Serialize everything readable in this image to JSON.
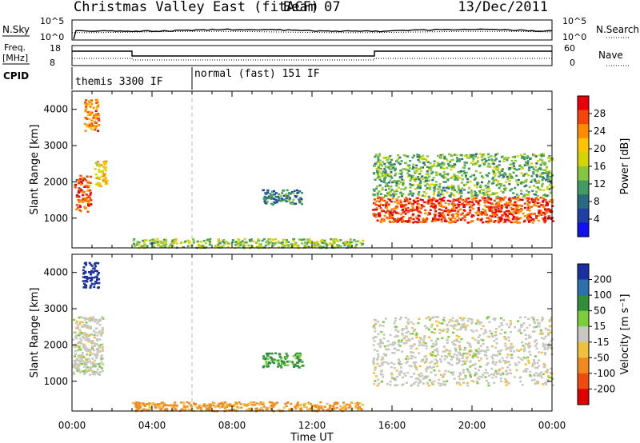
{
  "header": {
    "station": "Christmas Valley East (fitACF)",
    "beam": "Beam 07",
    "date": "13/Dec/2011"
  },
  "panels": {
    "nsky": {
      "label": "N.Sky",
      "ticks": [
        "10^5",
        "10^0"
      ]
    },
    "nsearch": {
      "label": "N.Search",
      "ticks": [
        "10^5",
        "10^0"
      ]
    },
    "freq": {
      "label_line1": "Freq.",
      "label_line2": "[MHz]",
      "ticks": [
        "18",
        "8"
      ]
    },
    "nave": {
      "label": "Nave",
      "ticks": [
        "60",
        "0"
      ]
    },
    "cpid": {
      "label": "CPID",
      "segments": [
        "themis 3300 IF",
        "normal (fast) 151 IF"
      ]
    }
  },
  "colorbars": {
    "power": {
      "label": "Power [dB]",
      "ticks": [
        "28",
        "24",
        "20",
        "16",
        "12",
        "8",
        "4"
      ],
      "colors": [
        "#e8000b",
        "#f5450a",
        "#ff8c00",
        "#ffc400",
        "#d4d400",
        "#86c540",
        "#3f9b5f",
        "#2a6a80",
        "#1f3fa6",
        "#1010f0"
      ]
    },
    "velocity": {
      "label": "Velocity [m s⁻¹]",
      "ticks": [
        "200",
        "100",
        "50",
        "15",
        "-15",
        "-50",
        "-100",
        "-200"
      ],
      "colors": [
        "#1a2fa0",
        "#2e6fb0",
        "#2f8f3a",
        "#7ccd3c",
        "#c8c8c0",
        "#f0c040",
        "#f08a20",
        "#f04a10",
        "#e00000"
      ]
    }
  },
  "axes": {
    "ylabel": "Slant Range [km]",
    "xlabel": "Time UT",
    "xticks": [
      "00:00",
      "04:00",
      "08:00",
      "12:00",
      "16:00",
      "20:00",
      "00:00"
    ],
    "yticks": [
      "1000",
      "2000",
      "3000",
      "4000"
    ]
  },
  "chart_data": [
    {
      "type": "heatmap",
      "title": "Power",
      "xlabel": "Time UT",
      "ylabel": "Slant Range [km]",
      "xlim_hours": [
        0,
        24
      ],
      "ylim_km": [
        180,
        4500
      ],
      "colorbar_range_db": [
        0,
        30
      ],
      "regions": [
        {
          "t0": 0.1,
          "t1": 0.9,
          "r0": 1200,
          "r1": 2200,
          "value": 26
        },
        {
          "t0": 0.6,
          "t1": 1.3,
          "r0": 3400,
          "r1": 4300,
          "value": 24
        },
        {
          "t0": 1.1,
          "t1": 1.7,
          "r0": 1900,
          "r1": 2600,
          "value": 18
        },
        {
          "t0": 9.5,
          "t1": 11.5,
          "r0": 1400,
          "r1": 1800,
          "value": 8
        },
        {
          "t0": 3.0,
          "t1": 14.5,
          "r0": 200,
          "r1": 450,
          "value": 14
        },
        {
          "t0": 15.0,
          "t1": 24.0,
          "r0": 900,
          "r1": 1600,
          "value": 27
        },
        {
          "t0": 15.0,
          "t1": 24.0,
          "r0": 1600,
          "r1": 2800,
          "value": 12
        }
      ]
    },
    {
      "type": "heatmap",
      "title": "Velocity",
      "xlabel": "Time UT",
      "ylabel": "Slant Range [km]",
      "xlim_hours": [
        0,
        24
      ],
      "ylim_km": [
        180,
        4500
      ],
      "colorbar_range_ms": [
        -200,
        200
      ],
      "regions": [
        {
          "t0": 0.0,
          "t1": 1.5,
          "r0": 1200,
          "r1": 2800,
          "value": 0
        },
        {
          "t0": 0.5,
          "t1": 1.3,
          "r0": 3600,
          "r1": 4300,
          "value": 180
        },
        {
          "t0": 3.0,
          "t1": 14.5,
          "r0": 200,
          "r1": 450,
          "value": -40
        },
        {
          "t0": 9.5,
          "t1": 11.5,
          "r0": 1400,
          "r1": 1800,
          "value": 40
        },
        {
          "t0": 15.0,
          "t1": 24.0,
          "r0": 900,
          "r1": 2800,
          "value": 0
        }
      ]
    }
  ]
}
